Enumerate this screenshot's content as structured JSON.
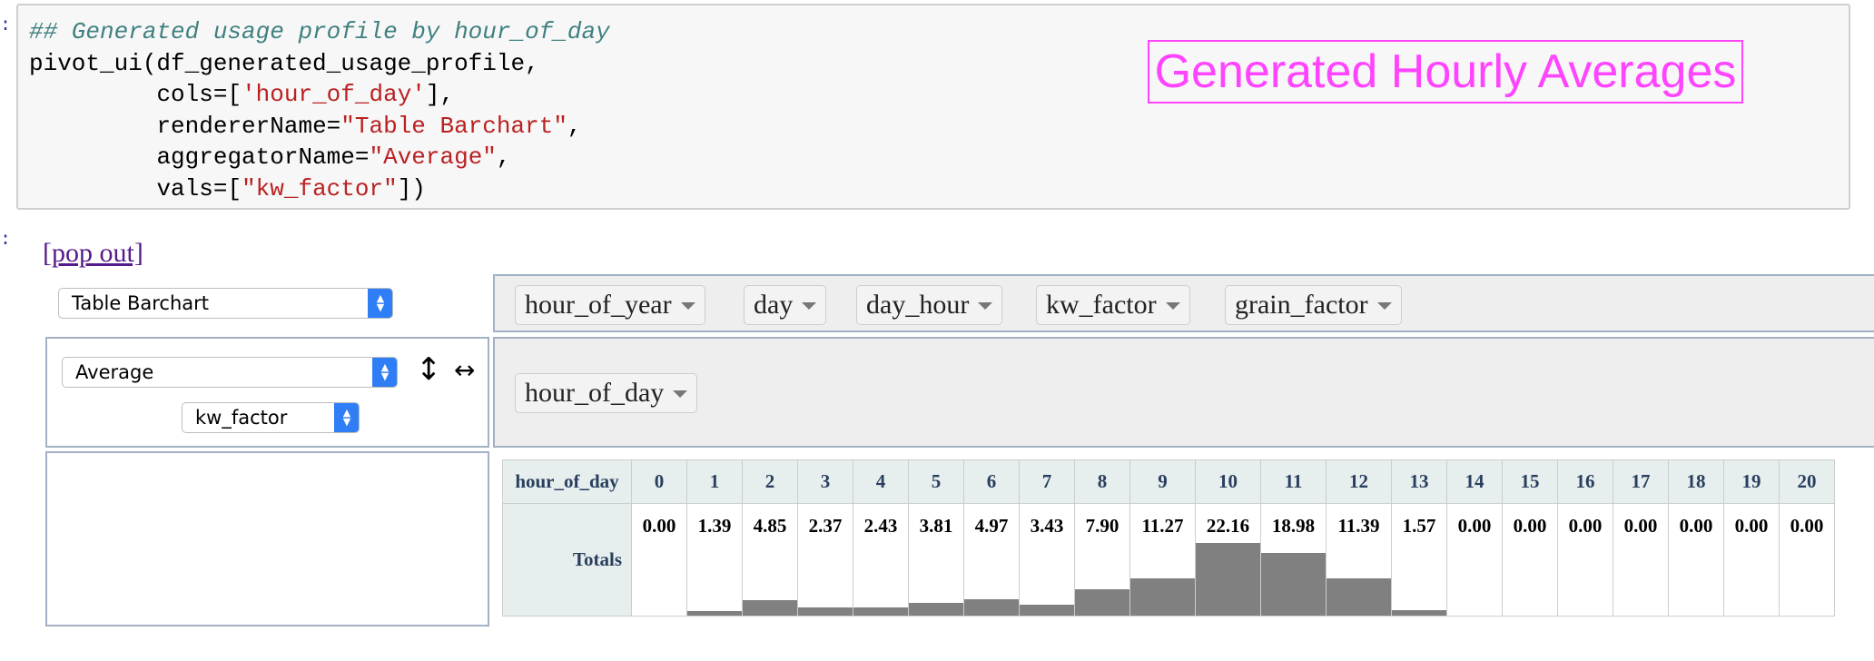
{
  "code": {
    "comment": "## Generated usage profile by hour_of_day",
    "line1": "pivot_ui(df_generated_usage_profile,",
    "cols_key": "cols=[",
    "cols_val": "'hour_of_day'",
    "cols_end": "],",
    "renderer_key": "rendererName=",
    "renderer_val": "\"Table Barchart\"",
    "aggregator_key": "aggregatorName=",
    "aggregator_val": "\"Average\"",
    "vals_key": "vals=[",
    "vals_val": "\"kw_factor\"",
    "vals_end": "])",
    "comma": ","
  },
  "title": "Generated Hourly Averages",
  "popout_label": "[pop out]",
  "renderer_select": "Table Barchart",
  "aggregator_select": "Average",
  "value_select": "kw_factor",
  "unused_attrs": [
    "hour_of_year",
    "day",
    "day_hour",
    "kw_factor",
    "grain_factor"
  ],
  "col_attr": "hour_of_day",
  "icons": {
    "row_order": "up-down-arrow-icon",
    "col_order": "left-right-arrow-icon",
    "row_order_glyph": "↕",
    "col_order_glyph": "↔"
  },
  "colors": {
    "bar": "#808080",
    "title": "#ff44ff",
    "select_accent": "#2f7ef6"
  },
  "chart_data": {
    "type": "table",
    "header_label": "hour_of_day",
    "row_label": "Totals",
    "categories": [
      "0",
      "1",
      "2",
      "3",
      "4",
      "5",
      "6",
      "7",
      "8",
      "9",
      "10",
      "11",
      "12",
      "13",
      "14",
      "15",
      "16",
      "17",
      "18",
      "19",
      "20"
    ],
    "values": [
      0.0,
      1.39,
      4.85,
      2.37,
      2.43,
      3.81,
      4.97,
      3.43,
      7.9,
      11.27,
      22.16,
      18.98,
      11.39,
      1.57,
      0.0,
      0.0,
      0.0,
      0.0,
      0.0,
      0.0,
      0.0
    ],
    "value_labels": [
      "0.00",
      "1.39",
      "4.85",
      "2.37",
      "2.43",
      "3.81",
      "4.97",
      "3.43",
      "7.90",
      "11.27",
      "22.16",
      "18.98",
      "11.39",
      "1.57",
      "0.00",
      "0.00",
      "0.00",
      "0.00",
      "0.00",
      "0.00",
      "0.00"
    ]
  }
}
